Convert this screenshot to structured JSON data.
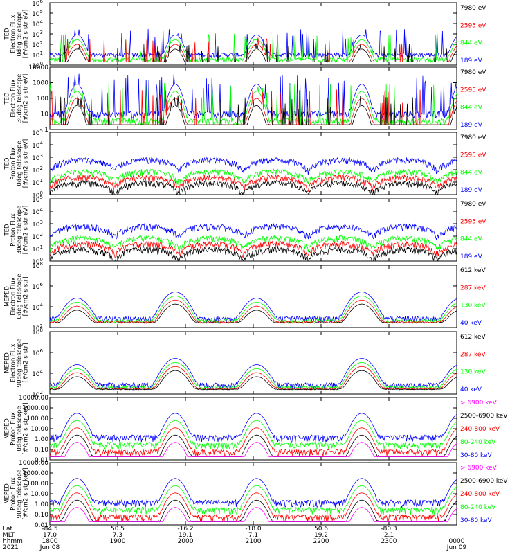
{
  "colors": {
    "blue": "#0000ff",
    "red": "#ff0000",
    "green": "#00ff00",
    "black": "#000000",
    "magenta": "#ff00ff"
  },
  "x_axis": {
    "labels": [
      "Lat",
      "MLT",
      "hhmm",
      "2021"
    ],
    "ticks": [
      {
        "lat": "-84.5",
        "mlt": "17.0",
        "hhmm": "1800",
        "date": "Jun 08"
      },
      {
        "lat": "50.5",
        "mlt": "7.3",
        "hhmm": "1900",
        "date": ""
      },
      {
        "lat": "-16.2",
        "mlt": "19.1",
        "hhmm": "2000",
        "date": ""
      },
      {
        "lat": "-18.0",
        "mlt": "7.1",
        "hhmm": "2100",
        "date": ""
      },
      {
        "lat": "50.6",
        "mlt": "19.2",
        "hhmm": "2200",
        "date": ""
      },
      {
        "lat": "-80.3",
        "mlt": "2.1",
        "hhmm": "2300",
        "date": ""
      },
      {
        "lat": "",
        "mlt": "",
        "hhmm": "0000",
        "date": "Jun 09"
      }
    ]
  },
  "chart_data": [
    {
      "type": "line",
      "panel": "ted-electron-0deg",
      "ylabel": [
        "TED",
        "Electron Flux",
        "0deg telescope",
        "[#/cm2-s-str-eV]"
      ],
      "log": true,
      "ylim": [
        1,
        1000000
      ],
      "ytick_labels": [
        "10^0",
        "10^1",
        "10^2",
        "10^3",
        "10^4",
        "10^5",
        "10^6"
      ],
      "legend": [
        {
          "label": "7980 eV",
          "color": "black"
        },
        {
          "label": "2595 eV",
          "color": "red"
        },
        {
          "label": "844 eV",
          "color": "green"
        },
        {
          "label": "189 eV",
          "color": "blue"
        }
      ],
      "events": [
        {
          "time": "1803",
          "peak": 2000
        },
        {
          "time": "1822",
          "peak": 500
        },
        {
          "time": "1932",
          "peak": 400
        },
        {
          "time": "2007",
          "peak": 1000
        },
        {
          "time": "2033",
          "peak": 500
        },
        {
          "time": "2143",
          "peak": 300
        },
        {
          "time": "2205",
          "peak": 1000
        },
        {
          "time": "2335",
          "peak": 1000
        }
      ]
    },
    {
      "type": "line",
      "panel": "ted-electron-30deg",
      "ylabel": [
        "TED",
        "Electron Flux",
        "30deg telescope",
        "[#/cm2-s-str-eV]"
      ],
      "log": true,
      "ylim": [
        1,
        10000
      ],
      "ytick_labels": [
        "1",
        "10",
        "100",
        "1000",
        "10000"
      ],
      "legend": [
        {
          "label": "7980 eV",
          "color": "black"
        },
        {
          "label": "2595 eV",
          "color": "red"
        },
        {
          "label": "844 eV",
          "color": "green"
        },
        {
          "label": "189 eV",
          "color": "blue"
        }
      ],
      "events": [
        {
          "time": "1803",
          "peak": 1000
        },
        {
          "time": "1910",
          "peak": 800
        },
        {
          "time": "1932",
          "peak": 600
        },
        {
          "time": "2013",
          "peak": 1000
        },
        {
          "time": "2205",
          "peak": 500
        },
        {
          "time": "2335",
          "peak": 500
        }
      ]
    },
    {
      "type": "line",
      "panel": "ted-proton-0deg",
      "ylabel": [
        "TED",
        "Proton Flux",
        "0deg telescope",
        "[#/cm2-s-str-eV]"
      ],
      "log": true,
      "ylim": [
        1,
        100000
      ],
      "ytick_labels": [
        "10^0",
        "10^1",
        "10^2",
        "10^3",
        "10^4",
        "10^5"
      ],
      "legend": [
        {
          "label": "7980 eV",
          "color": "black"
        },
        {
          "label": "2595 eV",
          "color": "red"
        },
        {
          "label": "844 eV",
          "color": "green"
        },
        {
          "label": "189 eV",
          "color": "blue"
        }
      ]
    },
    {
      "type": "line",
      "panel": "ted-proton-30deg",
      "ylabel": [
        "TED",
        "Proton Flux",
        "30deg telescope",
        "[#/cm2-s-str-eV]"
      ],
      "log": true,
      "ylim": [
        1,
        100000
      ],
      "ytick_labels": [
        "10^0",
        "10^1",
        "10^2",
        "10^3",
        "10^4",
        "10^5"
      ],
      "legend": [
        {
          "label": "7980 eV",
          "color": "black"
        },
        {
          "label": "2595 eV",
          "color": "red"
        },
        {
          "label": "844 eV",
          "color": "green"
        },
        {
          "label": "189 eV",
          "color": "blue"
        }
      ]
    },
    {
      "type": "line",
      "panel": "meped-electron-0deg",
      "ylabel": [
        "MEPED",
        "Electron Flux",
        "0deg telescope",
        "[#/cm2-s-str]"
      ],
      "log": true,
      "ylim": [
        100,
        1000000000
      ],
      "ytick_labels": [
        "10^2",
        "10^4",
        "10^6",
        "10^8"
      ],
      "legend": [
        {
          "label": "612 keV",
          "color": "black"
        },
        {
          "label": "287 keV",
          "color": "red"
        },
        {
          "label": "130 keV",
          "color": "green"
        },
        {
          "label": "40 keV",
          "color": "blue"
        }
      ]
    },
    {
      "type": "line",
      "panel": "meped-electron-90deg",
      "ylabel": [
        "MEPED",
        "Electron Flux",
        "90deg telescope",
        "[#/cm2-s-str]"
      ],
      "log": true,
      "ylim": [
        100,
        1000000000
      ],
      "ytick_labels": [
        "10^2",
        "10^4",
        "10^6",
        "10^8"
      ],
      "legend": [
        {
          "label": "612 keV",
          "color": "black"
        },
        {
          "label": "287 keV",
          "color": "red"
        },
        {
          "label": "130 keV",
          "color": "green"
        },
        {
          "label": "40 keV",
          "color": "blue"
        }
      ]
    },
    {
      "type": "line",
      "panel": "meped-proton-0deg",
      "ylabel": [
        "MEPED",
        "Proton Flux",
        "0deg telescope",
        "[#/cm2-s-str-keV]"
      ],
      "log": true,
      "ylim": [
        0.01,
        10000
      ],
      "ytick_labels": [
        "0.01",
        "0.10",
        "1.00",
        "10.00",
        "100.00",
        "1000.00",
        "10000.00"
      ],
      "legend": [
        {
          "label": "> 6900 keV",
          "color": "magenta"
        },
        {
          "label": "2500-6900 keV",
          "color": "black"
        },
        {
          "label": "240-800 keV",
          "color": "red"
        },
        {
          "label": "80-240 keV",
          "color": "green"
        },
        {
          "label": "30-80 keV",
          "color": "blue"
        }
      ]
    },
    {
      "type": "line",
      "panel": "meped-proton-90deg",
      "ylabel": [
        "MEPED",
        "Proton Flux",
        "90deg telescope",
        "[#/cm2-s-str-keV]"
      ],
      "log": true,
      "ylim": [
        0.01,
        10000
      ],
      "ytick_labels": [
        "0.01",
        "0.10",
        "1.00",
        "10.00",
        "100.00",
        "1000.00",
        "10000.00"
      ],
      "legend": [
        {
          "label": "> 6900 keV",
          "color": "magenta"
        },
        {
          "label": "2500-6900 keV",
          "color": "black"
        },
        {
          "label": "240-800 keV",
          "color": "red"
        },
        {
          "label": "80-240 keV",
          "color": "green"
        },
        {
          "label": "30-80 keV",
          "color": "blue"
        }
      ]
    }
  ]
}
